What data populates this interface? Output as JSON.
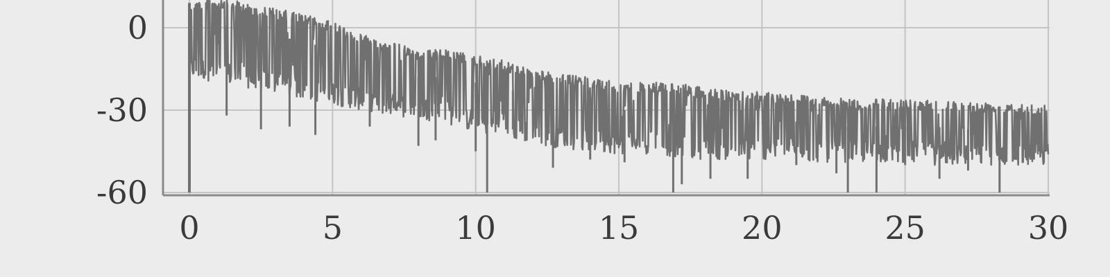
{
  "chart_data": {
    "type": "line",
    "title": "",
    "xlabel": "",
    "ylabel": "",
    "xlim": [
      0,
      30
    ],
    "ylim": [
      -60,
      10
    ],
    "x_ticks": [
      0,
      5,
      10,
      15,
      20,
      25,
      30
    ],
    "y_ticks": [
      0,
      -30,
      -60
    ],
    "x_tick_labels": [
      "0",
      "5",
      "10",
      "15",
      "20",
      "25",
      "30"
    ],
    "y_tick_labels": [
      "0",
      "-30",
      "-60"
    ],
    "grid": true,
    "colors": {
      "series": "#707070",
      "grid": "#c4c4c4",
      "axis": "#8a8a8a",
      "background": "#ececec",
      "plot_bg": "#ececec"
    },
    "series": [
      {
        "x": [
          0.0,
          1.0,
          2.0,
          3.0,
          4.0,
          5.0,
          6.0,
          7.0,
          8.0,
          9.0,
          10.0,
          11.0,
          12.0,
          13.0,
          14.0,
          15.0,
          16.0,
          17.0,
          18.0,
          19.0,
          20.0,
          21.0,
          22.0,
          23.0,
          24.0,
          25.0,
          26.0,
          27.0,
          28.0,
          29.0,
          30.0
        ],
        "envelope_top": [
          8,
          9,
          7,
          5,
          3,
          0,
          -4,
          -7,
          -10,
          -10,
          -12,
          -14,
          -17,
          -19,
          -20,
          -22,
          -22,
          -22,
          -24,
          -25,
          -25,
          -26,
          -27,
          -28,
          -28,
          -28,
          -28,
          -29,
          -29,
          -29,
          -30
        ],
        "envelope_bottom": [
          -18,
          -20,
          -22,
          -24,
          -26,
          -28,
          -30,
          -32,
          -33,
          -35,
          -38,
          -40,
          -42,
          -44,
          -45,
          -46,
          -46,
          -47,
          -48,
          -48,
          -48,
          -48,
          -49,
          -49,
          -49,
          -49,
          -50,
          -50,
          -50,
          -50,
          -50
        ],
        "deep_dips": [
          {
            "x": 1.3,
            "y": -32
          },
          {
            "x": 2.5,
            "y": -37
          },
          {
            "x": 3.5,
            "y": -36
          },
          {
            "x": 4.4,
            "y": -39
          },
          {
            "x": 6.3,
            "y": -36
          },
          {
            "x": 8.0,
            "y": -43
          },
          {
            "x": 8.6,
            "y": -41
          },
          {
            "x": 10.0,
            "y": -45
          },
          {
            "x": 10.4,
            "y": -60
          },
          {
            "x": 11.3,
            "y": -37
          },
          {
            "x": 12.7,
            "y": -51
          },
          {
            "x": 14.0,
            "y": -48
          },
          {
            "x": 15.2,
            "y": -49
          },
          {
            "x": 16.9,
            "y": -60
          },
          {
            "x": 17.2,
            "y": -57
          },
          {
            "x": 18.2,
            "y": -55
          },
          {
            "x": 19.5,
            "y": -55
          },
          {
            "x": 21.2,
            "y": -50
          },
          {
            "x": 22.6,
            "y": -53
          },
          {
            "x": 23.0,
            "y": -60
          },
          {
            "x": 24.0,
            "y": -60
          },
          {
            "x": 25.0,
            "y": -50
          },
          {
            "x": 26.2,
            "y": -55
          },
          {
            "x": 27.2,
            "y": -52
          },
          {
            "x": 28.3,
            "y": -60
          },
          {
            "x": 29.5,
            "y": -48
          }
        ]
      }
    ]
  }
}
